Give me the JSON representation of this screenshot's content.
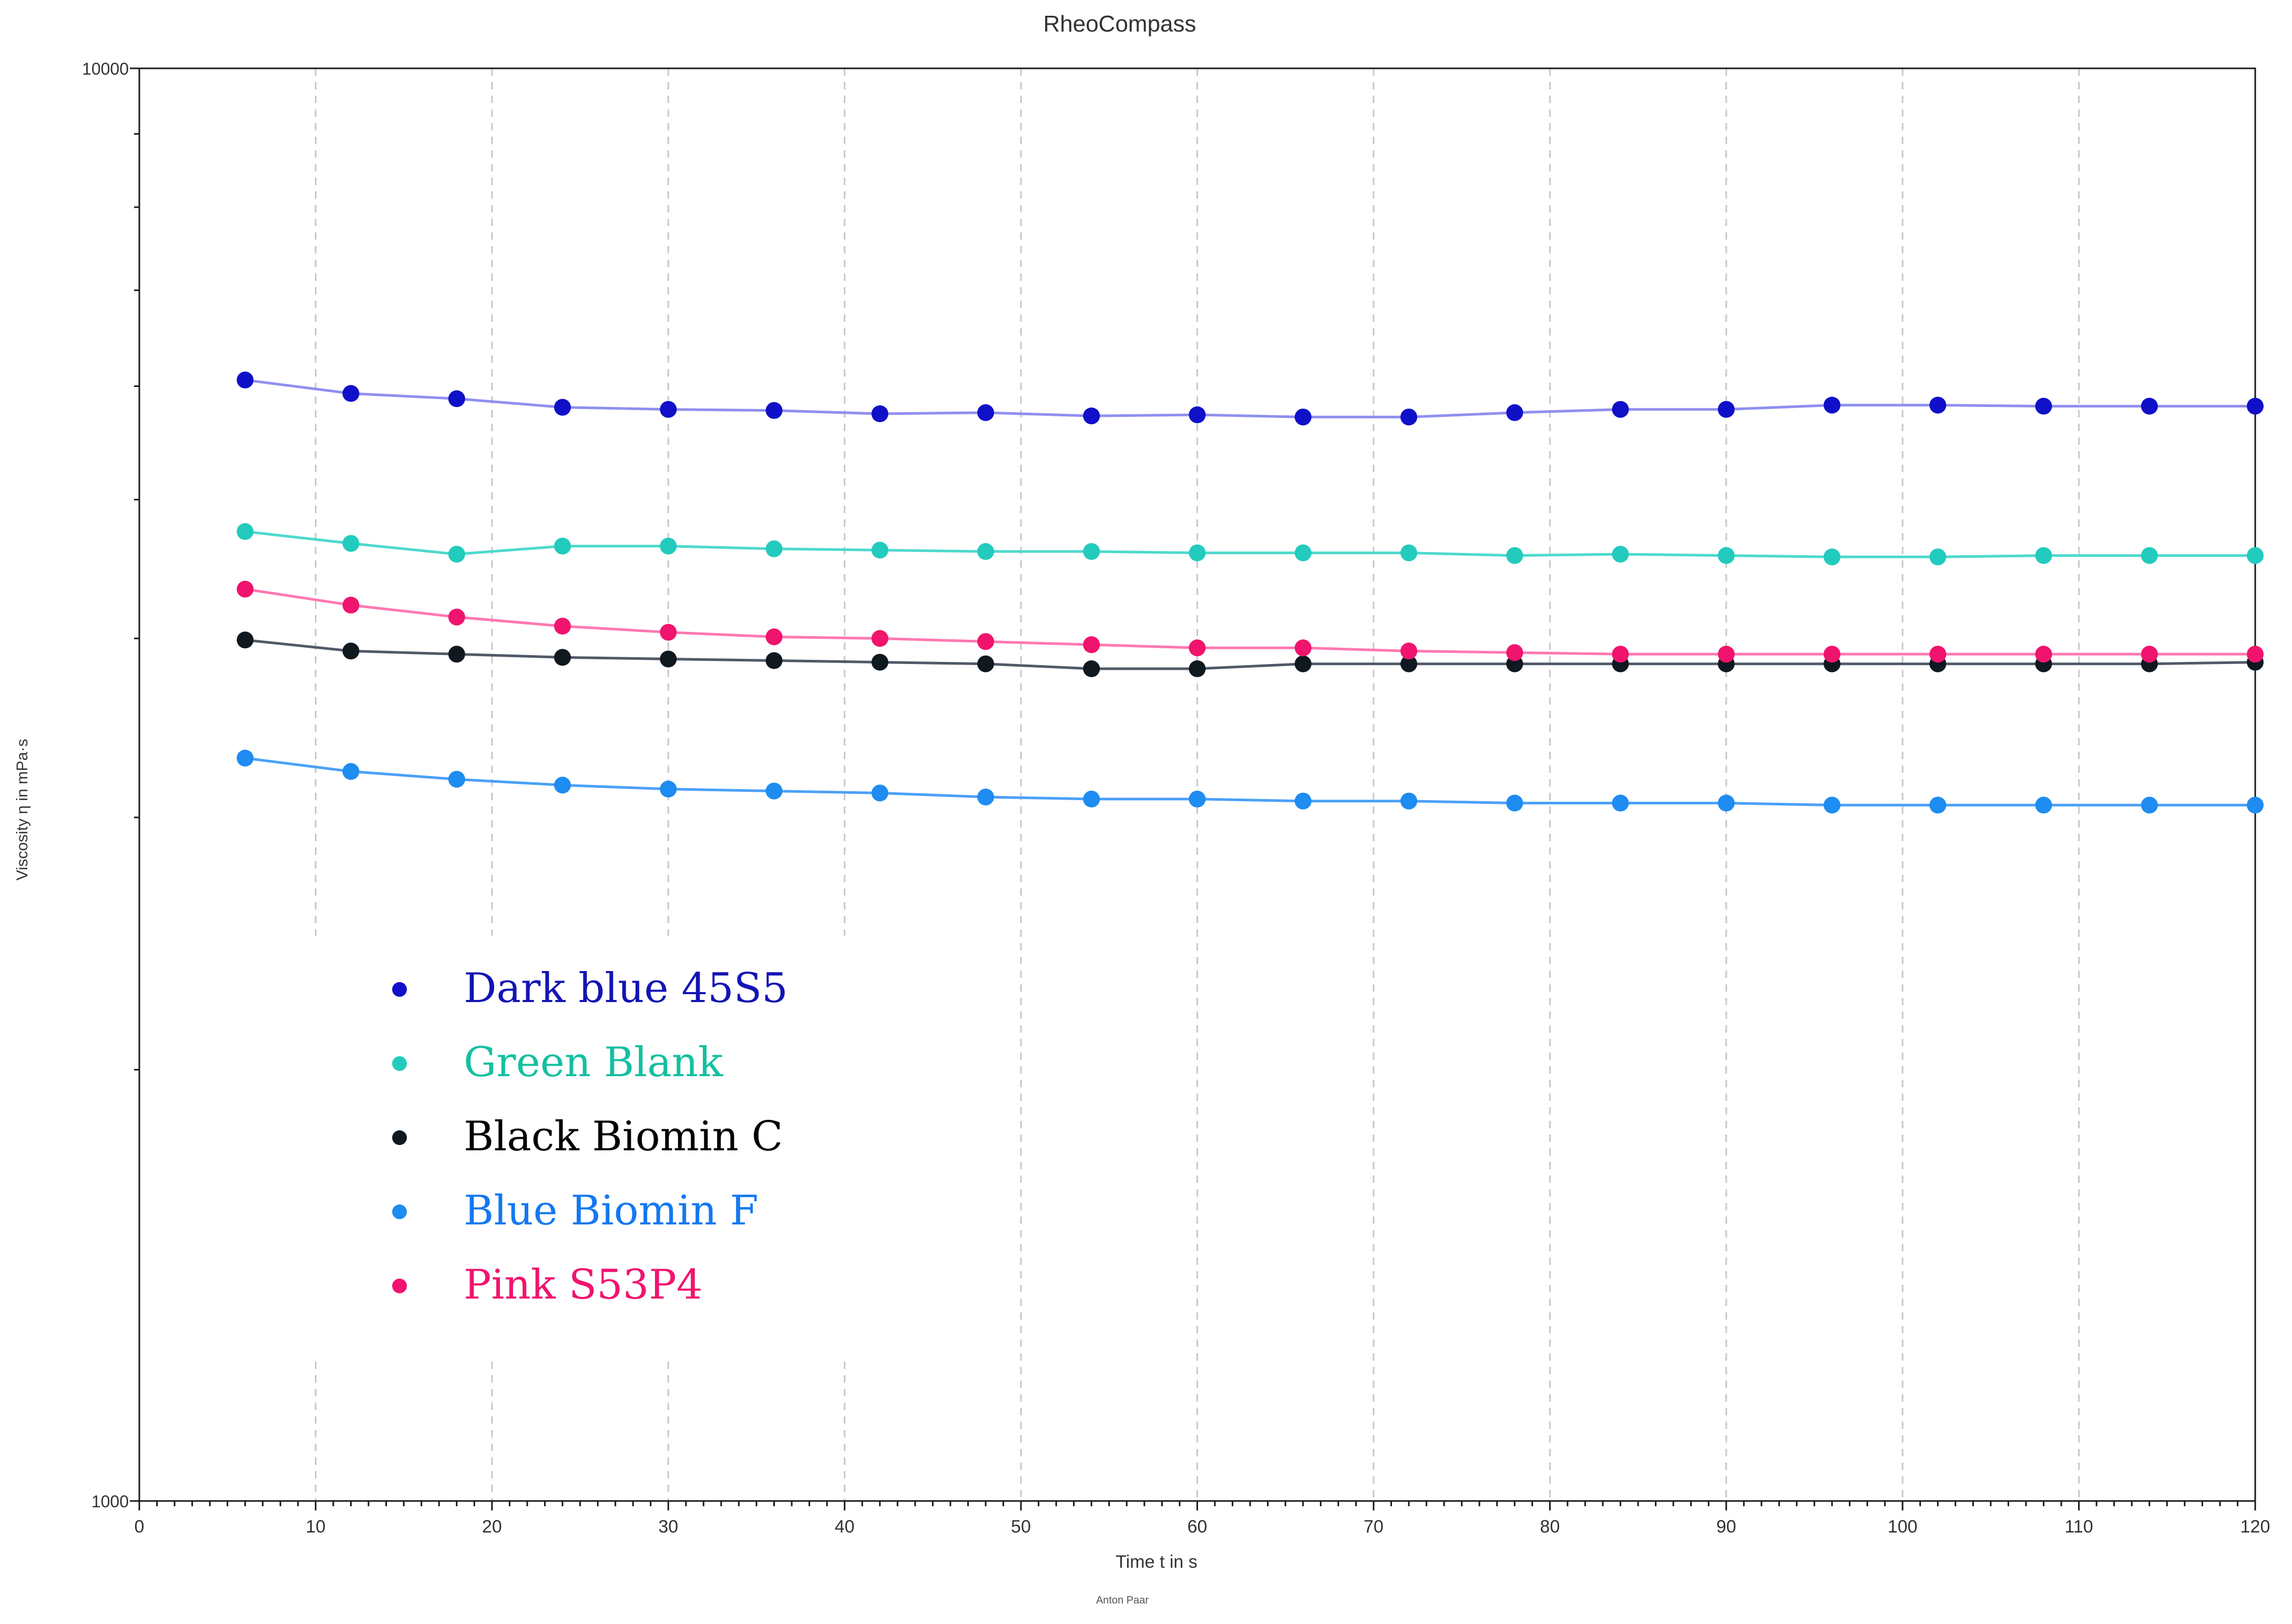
{
  "chart_data": {
    "type": "line",
    "title": "RheoCompass",
    "xlabel": "Time  t  in s",
    "ylabel": "Viscosity  η  in mPa·s",
    "footer": "Anton Paar",
    "y_scale": "log",
    "xlim": [
      0,
      120
    ],
    "ylim": [
      1000,
      10000
    ],
    "x_ticks": [
      "0",
      "10",
      "20",
      "30",
      "40",
      "50",
      "60",
      "70",
      "80",
      "90",
      "100",
      "110",
      "120"
    ],
    "y_ticks": [
      "1000",
      "10000"
    ],
    "grid": "vertical dashed at x ticks",
    "legend_position": "lower-left inside plot",
    "x": [
      6,
      12,
      18,
      24,
      30,
      36,
      42,
      48,
      54,
      60,
      66,
      72,
      78,
      84,
      90,
      96,
      102,
      108,
      114,
      120
    ],
    "series": [
      {
        "name": "Dark blue 45S5",
        "line_color": "#8f8ff0",
        "marker_color": "#1010c8",
        "label_color": "#1414b4",
        "values": [
          6060,
          5930,
          5880,
          5800,
          5780,
          5770,
          5740,
          5750,
          5720,
          5730,
          5710,
          5710,
          5750,
          5780,
          5780,
          5820,
          5820,
          5810,
          5810,
          5810
        ]
      },
      {
        "name": "Green Blank",
        "line_color": "#4dd9cc",
        "marker_color": "#22cbbd",
        "label_color": "#14c0a0",
        "values": [
          4750,
          4660,
          4580,
          4640,
          4640,
          4620,
          4610,
          4600,
          4600,
          4590,
          4590,
          4590,
          4570,
          4580,
          4570,
          4560,
          4560,
          4570,
          4570,
          4570
        ]
      },
      {
        "name": "Black Biomin C",
        "line_color": "#505a68",
        "marker_color": "#101820",
        "label_color": "#000000",
        "values": [
          3990,
          3920,
          3900,
          3880,
          3870,
          3860,
          3850,
          3840,
          3810,
          3810,
          3840,
          3840,
          3840,
          3840,
          3840,
          3840,
          3840,
          3840,
          3840,
          3850
        ]
      },
      {
        "name": "Blue Biomin F",
        "line_color": "#4aa0f8",
        "marker_color": "#1e8cf0",
        "label_color": "#1478f0",
        "values": [
          3300,
          3230,
          3190,
          3160,
          3140,
          3130,
          3120,
          3100,
          3090,
          3090,
          3080,
          3080,
          3070,
          3070,
          3070,
          3060,
          3060,
          3060,
          3060,
          3060
        ]
      },
      {
        "name": "Pink S53P4",
        "line_color": "#ff78b0",
        "marker_color": "#f0146e",
        "label_color": "#f0146e",
        "values": [
          4330,
          4220,
          4140,
          4080,
          4040,
          4010,
          4000,
          3980,
          3960,
          3940,
          3940,
          3920,
          3910,
          3900,
          3900,
          3900,
          3900,
          3900,
          3900,
          3900
        ]
      }
    ]
  }
}
